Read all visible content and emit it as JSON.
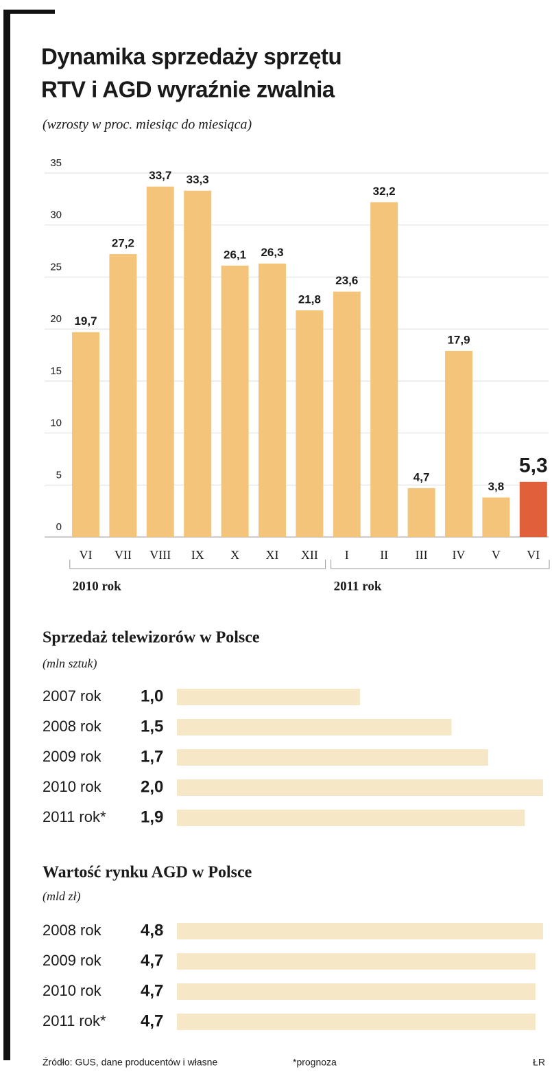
{
  "chart_data": [
    {
      "type": "bar",
      "title": [
        "Dynamika sprzedaży sprzętu",
        "RTV i AGD wyraźnie zwalnia"
      ],
      "subtitle": "(wzrosty w proc. miesiąc do miesiąca)",
      "categories": [
        "VI",
        "VII",
        "VIII",
        "IX",
        "X",
        "XI",
        "XII",
        "I",
        "II",
        "III",
        "IV",
        "V",
        "VI"
      ],
      "values": [
        19.7,
        27.2,
        33.7,
        33.3,
        26.1,
        26.3,
        21.8,
        23.6,
        32.2,
        4.7,
        17.9,
        3.8,
        5.3
      ],
      "value_labels": [
        "19,7",
        "27,2",
        "33,7",
        "33,3",
        "26,1",
        "26,3",
        "21,8",
        "23,6",
        "32,2",
        "4,7",
        "17,9",
        "3,8",
        "5,3"
      ],
      "colors": [
        "#f3c47a",
        "#f3c47a",
        "#f3c47a",
        "#f3c47a",
        "#f3c47a",
        "#f3c47a",
        "#f3c47a",
        "#f3c47a",
        "#f3c47a",
        "#f3c47a",
        "#f3c47a",
        "#f3c47a",
        "#e0603a"
      ],
      "groups": [
        {
          "label": "2010 rok",
          "count": 7
        },
        {
          "label": "2011 rok",
          "count": 6
        }
      ],
      "ylim": [
        0,
        35
      ],
      "yticks": [
        0,
        5,
        10,
        15,
        20,
        25,
        30,
        35
      ],
      "grid": true
    },
    {
      "type": "hbar",
      "title": "Sprzedaż telewizorów w Polsce",
      "subtitle": "(mln sztuk)",
      "categories": [
        "2007 rok",
        "2008 rok",
        "2009 rok",
        "2010 rok",
        "2011 rok*"
      ],
      "values": [
        1.0,
        1.5,
        1.7,
        2.0,
        1.9
      ],
      "value_labels": [
        "1,0",
        "1,5",
        "1,7",
        "2,0",
        "1,9"
      ],
      "color": "#f6e7c6"
    },
    {
      "type": "hbar",
      "title": "Wartość rynku AGD w Polsce",
      "subtitle": "(mld zł)",
      "categories": [
        "2008 rok",
        "2009 rok",
        "2010 rok",
        "2011 rok*"
      ],
      "values": [
        4.8,
        4.7,
        4.7,
        4.7
      ],
      "value_labels": [
        "4,8",
        "4,7",
        "4,7",
        "4,7"
      ],
      "color": "#f6e7c6"
    }
  ],
  "footer": {
    "source": "Źródło: GUS, dane producentów i własne",
    "note": "*prognoza",
    "author": "ŁR"
  }
}
